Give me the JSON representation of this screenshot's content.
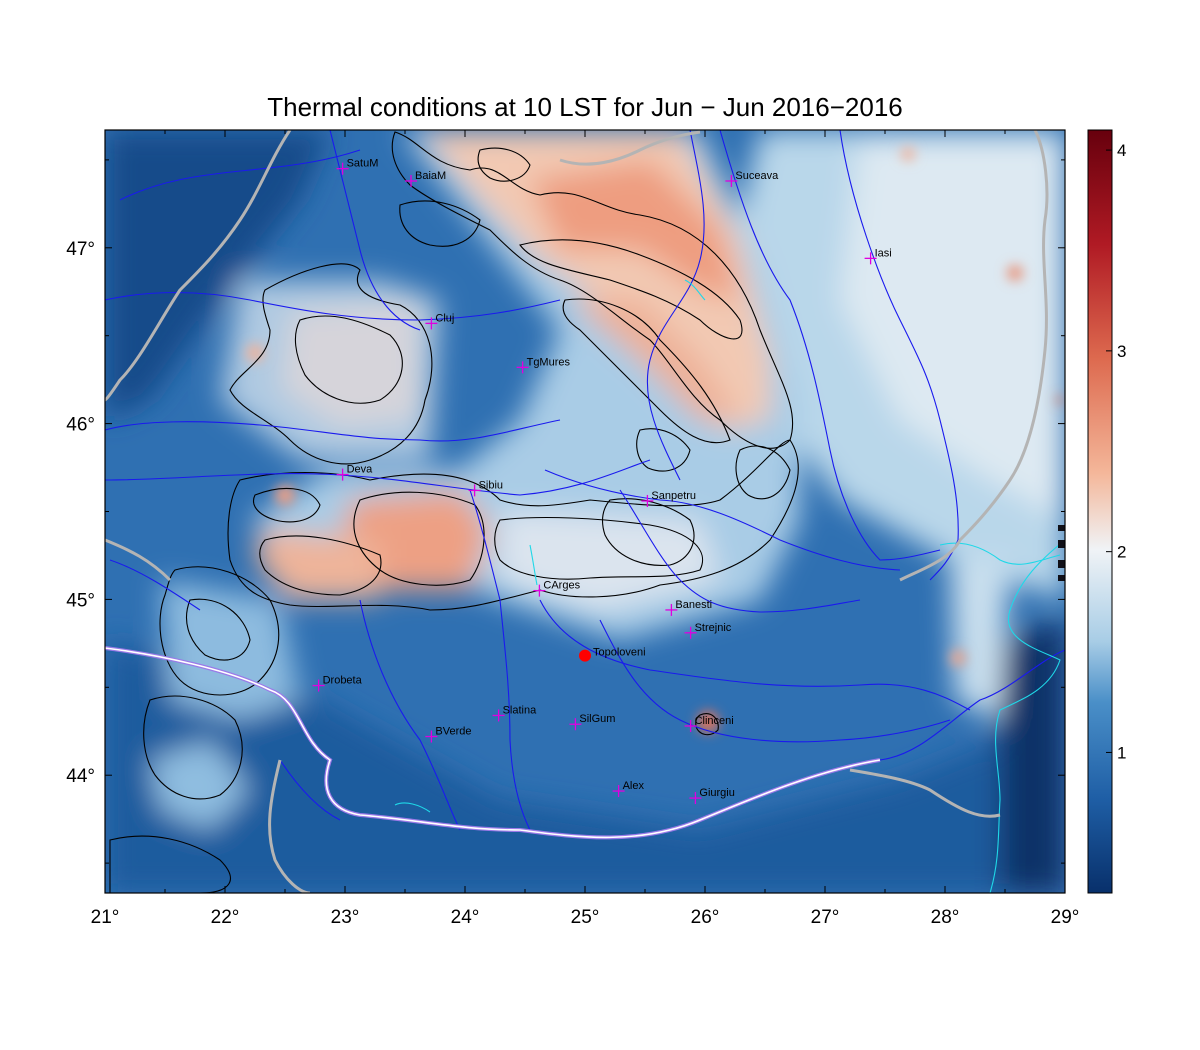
{
  "title": "Thermal conditions at 10 LST for Jun − Jun  2016−2016",
  "map": {
    "lon_range": [
      21,
      29
    ],
    "lat_range": [
      43.33,
      47.67
    ],
    "lon_ticks": [
      21,
      22,
      23,
      24,
      25,
      26,
      27,
      28,
      29
    ],
    "lon_tick_labels": [
      "21°",
      "22°",
      "23°",
      "24°",
      "25°",
      "26°",
      "27°",
      "28°",
      "29°"
    ],
    "lat_ticks": [
      44,
      45,
      46,
      47
    ],
    "lat_tick_labels": [
      "44°",
      "45°",
      "46°",
      "47°"
    ]
  },
  "colorbar": {
    "range": [
      0.3,
      4.1
    ],
    "ticks": [
      1,
      2,
      3,
      4
    ],
    "tick_labels": [
      "1",
      "2",
      "3",
      "4"
    ],
    "colors": [
      "#08306b",
      "#1f5fa6",
      "#4a8fc8",
      "#a8cde6",
      "#f0f3f6",
      "#f4b79a",
      "#dd6a4f",
      "#b01a24",
      "#67000d"
    ]
  },
  "cities": [
    {
      "name": "SatuM",
      "lon": 22.98,
      "lat": 47.45
    },
    {
      "name": "BaiaM",
      "lon": 23.55,
      "lat": 47.38
    },
    {
      "name": "Suceava",
      "lon": 26.22,
      "lat": 47.38
    },
    {
      "name": "Iasi",
      "lon": 27.38,
      "lat": 46.94
    },
    {
      "name": "Cluj",
      "lon": 23.72,
      "lat": 46.57
    },
    {
      "name": "TgMures",
      "lon": 24.48,
      "lat": 46.32
    },
    {
      "name": "Deva",
      "lon": 22.98,
      "lat": 45.71
    },
    {
      "name": "Sibiu",
      "lon": 24.08,
      "lat": 45.62
    },
    {
      "name": "Sanpetru",
      "lon": 25.52,
      "lat": 45.56
    },
    {
      "name": "CArges",
      "lon": 24.62,
      "lat": 45.05
    },
    {
      "name": "Banesti",
      "lon": 25.72,
      "lat": 44.94
    },
    {
      "name": "Strejnic",
      "lon": 25.88,
      "lat": 44.81
    },
    {
      "name": "Drobeta",
      "lon": 22.78,
      "lat": 44.51
    },
    {
      "name": "Slatina",
      "lon": 24.28,
      "lat": 44.34
    },
    {
      "name": "SilGum",
      "lon": 24.92,
      "lat": 44.29
    },
    {
      "name": "Clinceni",
      "lon": 25.88,
      "lat": 44.28
    },
    {
      "name": "BVerde",
      "lon": 23.72,
      "lat": 44.22
    },
    {
      "name": "Alex",
      "lon": 25.28,
      "lat": 43.91
    },
    {
      "name": "Giurgiu",
      "lon": 25.92,
      "lat": 43.87
    }
  ],
  "site": {
    "name": "Topoloveni",
    "lon": 25.0,
    "lat": 44.68,
    "color": "#ff0000"
  },
  "colors": {
    "city_marker": "#e000e0",
    "border": "#b4b4b4",
    "rivers": "#1a1aee",
    "coast": "#1fd8e8",
    "contour": "#000000"
  }
}
